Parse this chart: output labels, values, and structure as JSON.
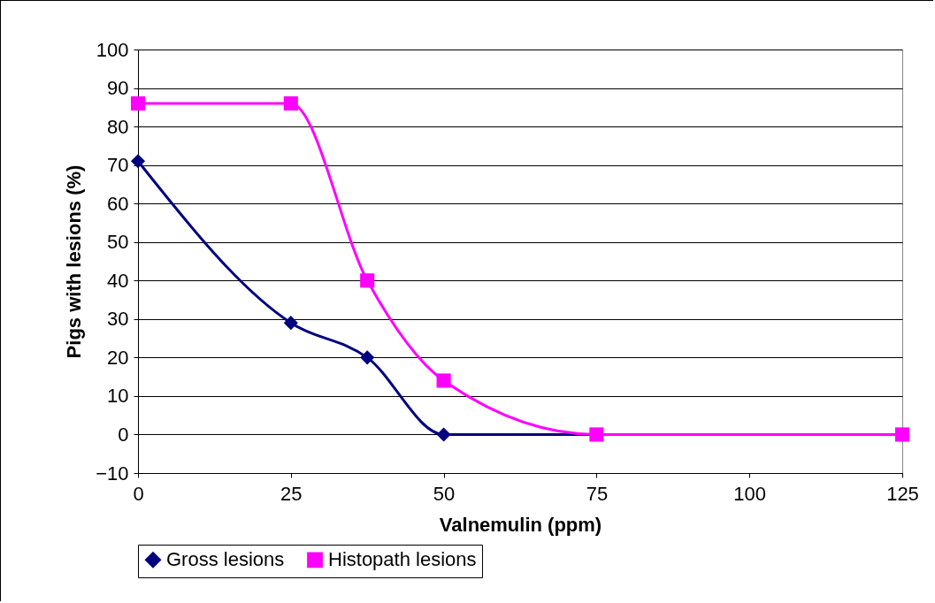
{
  "chart_data": {
    "type": "line",
    "xlabel": "Valnemulin (ppm)",
    "ylabel": "Pigs with lesions (%)",
    "x": [
      0,
      25,
      37.5,
      50,
      75,
      125
    ],
    "series": [
      {
        "name": "Gross lesions",
        "color": "#000080",
        "marker": "diamond",
        "values": [
          71,
          29,
          20,
          0,
          0,
          0
        ]
      },
      {
        "name": "Histopath lesions",
        "color": "#ff00ff",
        "marker": "square",
        "values": [
          86,
          86,
          40,
          14,
          0,
          0
        ]
      }
    ],
    "xlim": [
      0,
      125
    ],
    "xticks": [
      0,
      25,
      50,
      75,
      100,
      125
    ],
    "ylim": [
      -10,
      100
    ],
    "yticks": [
      -10,
      0,
      10,
      20,
      30,
      40,
      50,
      60,
      70,
      80,
      90,
      100
    ],
    "grid": "y",
    "legend": "bottom",
    "line_style": "solid"
  }
}
